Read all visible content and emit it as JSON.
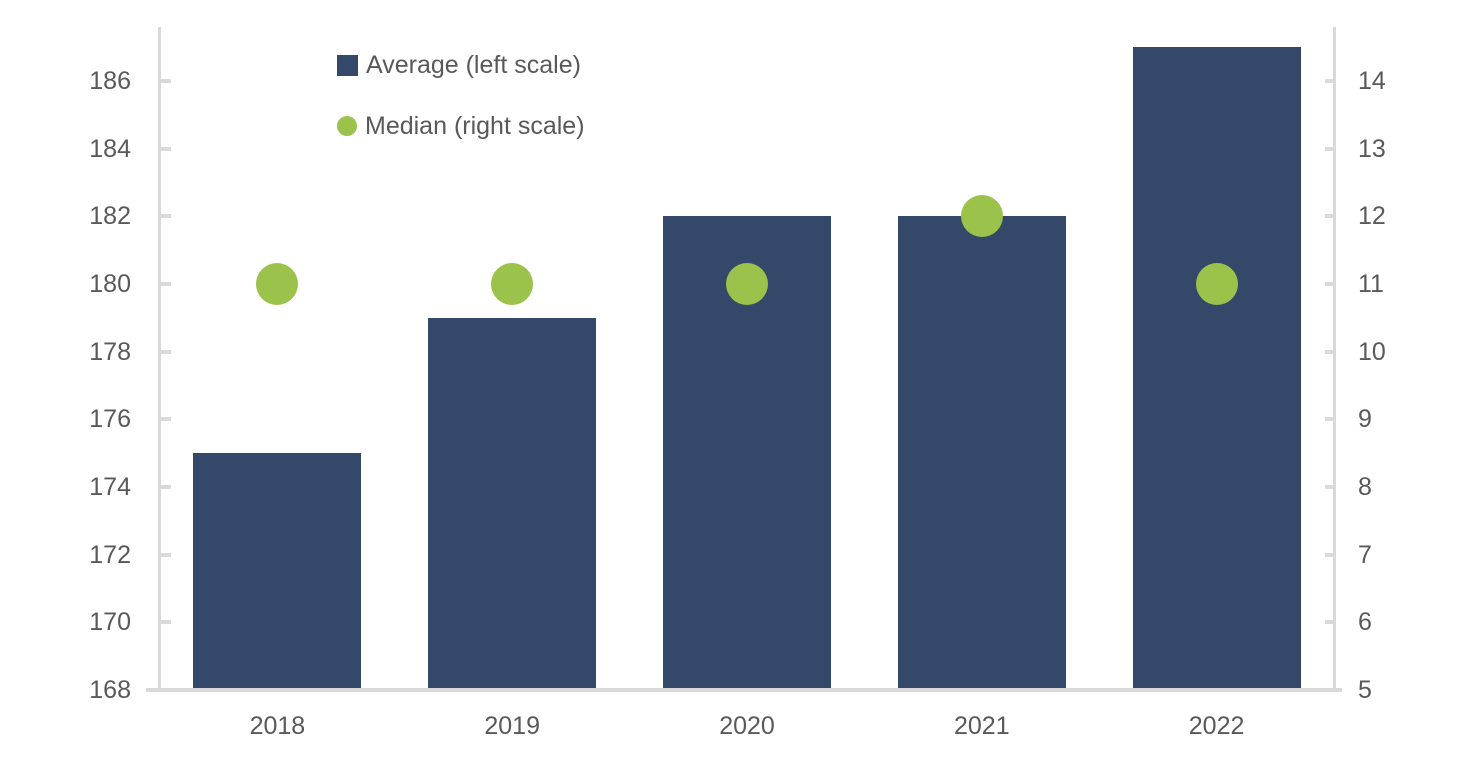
{
  "chart_data": {
    "type": "bar",
    "title": "",
    "categories": [
      "2018",
      "2019",
      "2020",
      "2021",
      "2022"
    ],
    "series": [
      {
        "name": "Average (left scale)",
        "type": "bar",
        "axis": "left",
        "marker": "square",
        "color": "#34496A",
        "values": [
          175,
          179,
          182,
          182,
          187
        ]
      },
      {
        "name": "Median (right scale)",
        "type": "scatter",
        "axis": "right",
        "marker": "circle",
        "color": "#9BC24A",
        "values": [
          11,
          11,
          11,
          12,
          11
        ]
      }
    ],
    "left_axis": {
      "min": 168,
      "max": 187.6,
      "tick_values": [
        186,
        184,
        182,
        180,
        178,
        176,
        174,
        172,
        170,
        168
      ]
    },
    "right_axis": {
      "min": 5,
      "max": 14.8,
      "tick_values": [
        14,
        13,
        12,
        11,
        10,
        9,
        8,
        7,
        6,
        5
      ]
    },
    "legend_position": "top-left-inside",
    "grid": false,
    "colors": {
      "axis_line": "#D9D9D9",
      "tick": "#D9D9D9",
      "label": "#595959",
      "background": "#FFFFFF"
    }
  }
}
